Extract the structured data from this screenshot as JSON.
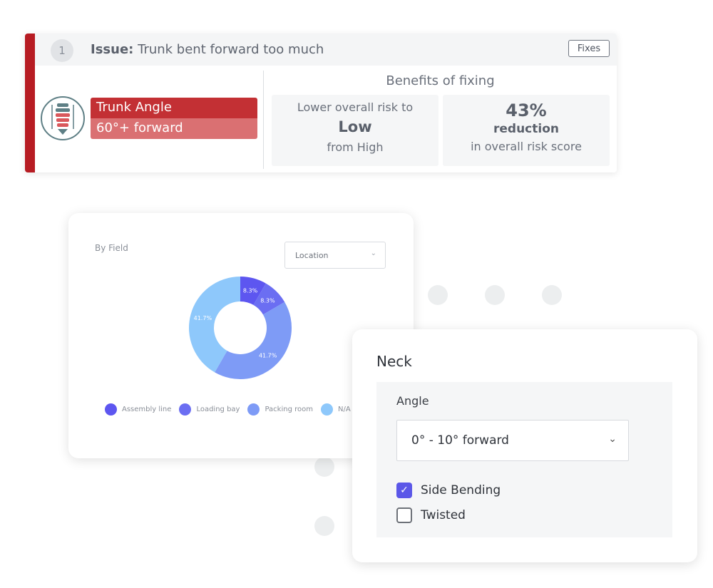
{
  "issue_card": {
    "number": "1",
    "issue_prefix": "Issue:",
    "issue_text": "Trunk bent forward too much",
    "fixes_label": "Fixes",
    "angle_title": "Trunk Angle",
    "angle_value": "60°+ forward",
    "benefits_title": "Benefits of fixing",
    "benefit_risk": {
      "line1": "Lower overall risk to",
      "level": "Low",
      "line3": "from High"
    },
    "benefit_score": {
      "percent": "43%",
      "label": "reduction",
      "line3": "in overall risk score"
    },
    "colors": {
      "accent": "#b71c23",
      "angle_top": "#c33034",
      "angle_bottom": "#da7072"
    }
  },
  "chart_card": {
    "title": "By Field",
    "select_value": "Location"
  },
  "chart_data": {
    "type": "pie",
    "donut": true,
    "categories": [
      "Assembly line",
      "Loading bay",
      "Packing room",
      "N/A"
    ],
    "values": [
      8.3,
      8.3,
      41.7,
      41.7
    ],
    "labels": [
      "8.3%",
      "8.3%",
      "41.7%",
      "41.7%"
    ],
    "colors": [
      "#5d56f0",
      "#6b6ef2",
      "#7e9bf6",
      "#8ec8fb"
    ],
    "legend_position": "bottom"
  },
  "neck_card": {
    "title": "Neck",
    "angle_label": "Angle",
    "angle_value": "0° - 10° forward",
    "checkboxes": [
      {
        "label": "Side Bending",
        "checked": true
      },
      {
        "label": "Twisted",
        "checked": false
      }
    ],
    "colors": {
      "checkbox_on": "#5b57e8"
    }
  }
}
